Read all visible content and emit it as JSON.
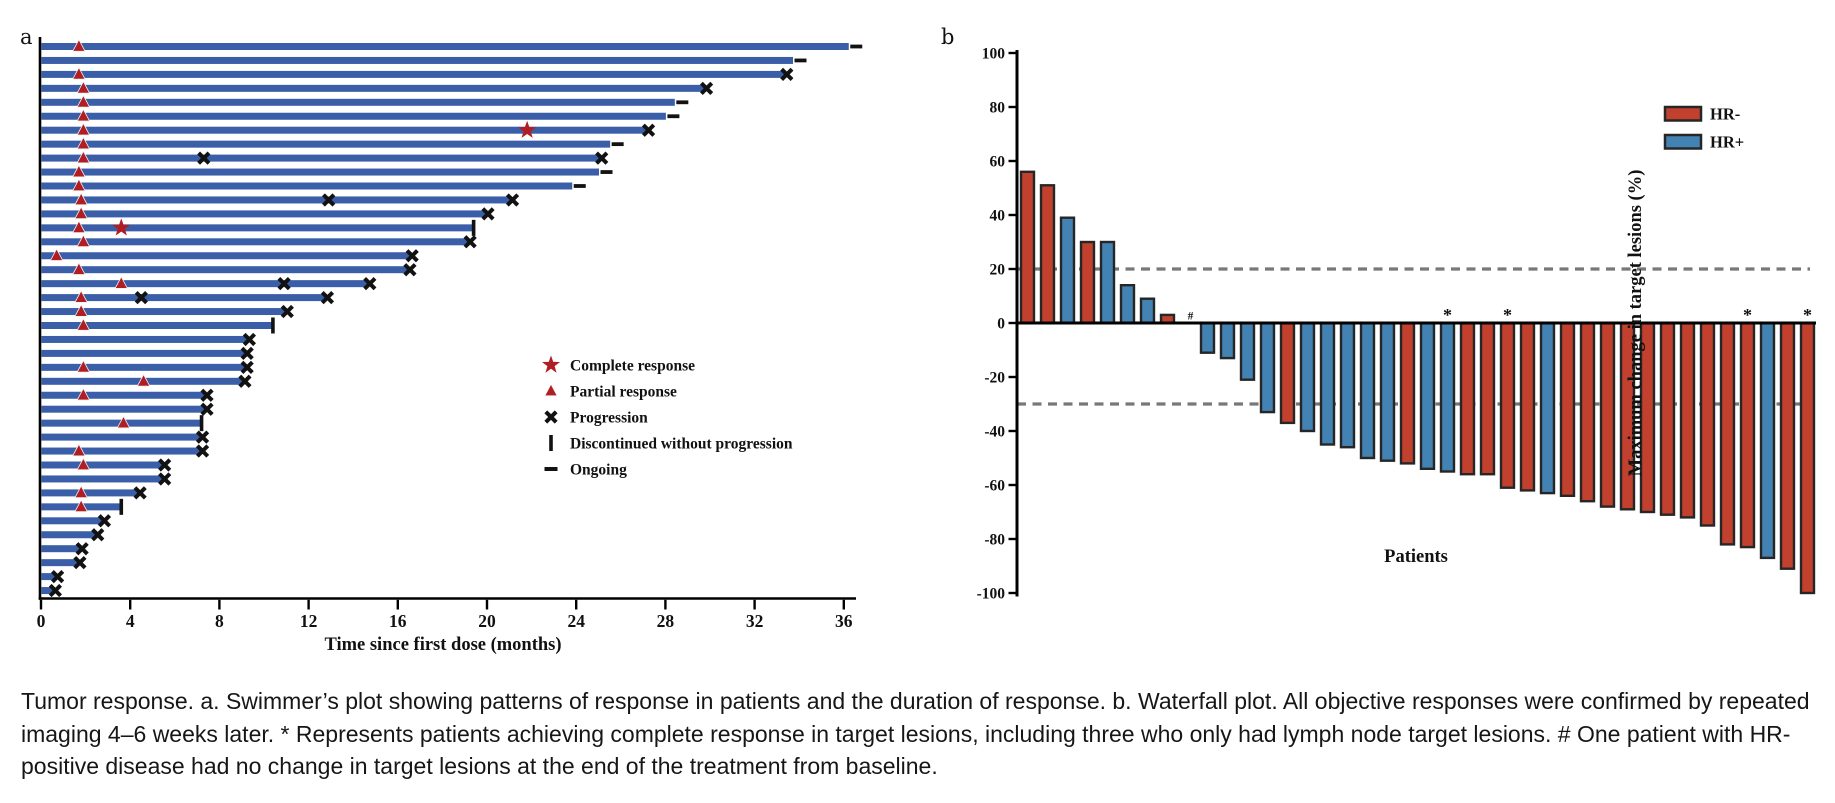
{
  "figure": {
    "panel_a_label": "a",
    "panel_b_label": "b"
  },
  "caption": {
    "text": "Tumor response. a. Swimmer’s plot showing patterns of response in patients and the duration of response. b. Waterfall plot. All objective responses were confirmed by repeated imaging 4–6 weeks later. * Represents patients achieving complete response in target lesions, including three who only had lymph node target lesions. # One patient with HR-positive disease had no change in target lesions at the end of the treatment from baseline."
  },
  "chart_data": [
    {
      "id": "swimmer-plot",
      "type": "bar",
      "orientation": "horizontal",
      "xlabel": "Time since first dose (months)",
      "x_ticks": [
        0,
        4,
        8,
        12,
        16,
        20,
        24,
        28,
        32,
        36
      ],
      "xlim": [
        0,
        36.5
      ],
      "bar_color": "#3a5fa8",
      "marker_red": "#b01e24",
      "marker_black": "#121212",
      "legend": [
        {
          "symbol": "star",
          "label": "Complete response"
        },
        {
          "symbol": "triangle",
          "label": "Partial response"
        },
        {
          "symbol": "x",
          "label": "Progression"
        },
        {
          "symbol": "bar",
          "label": "Discontinued without progression"
        },
        {
          "symbol": "dash",
          "label": "Ongoing"
        }
      ],
      "patients": [
        {
          "len": 36.2,
          "pr": 1.7,
          "end": "ongoing"
        },
        {
          "len": 33.7,
          "end": "ongoing"
        },
        {
          "len": 33.4,
          "pr": 1.7,
          "end": "px"
        },
        {
          "len": 29.8,
          "pr": 1.9,
          "end": "px"
        },
        {
          "len": 28.4,
          "pr": 1.9,
          "end": "ongoing"
        },
        {
          "len": 28.0,
          "pr": 1.9,
          "end": "ongoing"
        },
        {
          "len": 27.2,
          "pr": 1.9,
          "cr": 21.8,
          "end": "px"
        },
        {
          "len": 25.5,
          "pr": 1.9,
          "end": "ongoing"
        },
        {
          "len": 25.1,
          "pr": 1.9,
          "midpx": 7.3,
          "end": "px"
        },
        {
          "len": 25.0,
          "pr": 1.7,
          "end": "ongoing"
        },
        {
          "len": 23.8,
          "pr": 1.7,
          "end": "ongoing"
        },
        {
          "len": 21.1,
          "pr": 1.8,
          "midpx": 12.9,
          "end": "px"
        },
        {
          "len": 20.0,
          "pr": 1.8,
          "end": "px"
        },
        {
          "len": 19.4,
          "pr": 1.7,
          "cr": 3.6,
          "end": "disc"
        },
        {
          "len": 19.2,
          "pr": 1.9,
          "end": "px"
        },
        {
          "len": 16.6,
          "pr": 0.7,
          "end": "px"
        },
        {
          "len": 16.5,
          "pr": 1.7,
          "end": "px"
        },
        {
          "len": 14.7,
          "pr": 3.6,
          "midpx": 10.9,
          "end": "px"
        },
        {
          "len": 12.8,
          "pr": 1.8,
          "midpx": 4.5,
          "end": "px"
        },
        {
          "len": 11.0,
          "pr": 1.8,
          "end": "px"
        },
        {
          "len": 10.4,
          "pr": 1.9,
          "end": "disc"
        },
        {
          "len": 9.3,
          "end": "px"
        },
        {
          "len": 9.2,
          "end": "px"
        },
        {
          "len": 9.2,
          "pr": 1.9,
          "end": "px"
        },
        {
          "len": 9.1,
          "pr": 4.6,
          "end": "px"
        },
        {
          "len": 7.4,
          "pr": 1.9,
          "end": "px"
        },
        {
          "len": 7.4,
          "end": "px"
        },
        {
          "len": 7.2,
          "pr": 3.7,
          "end": "disc"
        },
        {
          "len": 7.2,
          "end": "px"
        },
        {
          "len": 7.2,
          "pr": 1.7,
          "end": "px"
        },
        {
          "len": 5.5,
          "pr": 1.9,
          "end": "px"
        },
        {
          "len": 5.5,
          "end": "px"
        },
        {
          "len": 4.4,
          "pr": 1.8,
          "end": "px"
        },
        {
          "len": 3.6,
          "pr": 1.8,
          "end": "disc"
        },
        {
          "len": 2.8,
          "end": "px"
        },
        {
          "len": 2.5,
          "end": "px"
        },
        {
          "len": 1.8,
          "end": "px"
        },
        {
          "len": 1.7,
          "end": "px"
        },
        {
          "len": 0.7,
          "end": "px"
        },
        {
          "len": 0.6,
          "end": "px"
        }
      ]
    },
    {
      "id": "waterfall-plot",
      "type": "bar",
      "ylabel": "Maximum change in target lesions (%)",
      "xlabel": "Patients",
      "ylim": [
        -100,
        100
      ],
      "y_ticks": [
        100,
        80,
        60,
        40,
        20,
        0,
        -20,
        -40,
        -60,
        -80,
        -100
      ],
      "ref_lines": [
        20,
        -30
      ],
      "ref_line_color": "#787878",
      "outline_color": "#262626",
      "colors": {
        "HR-": "#c2402e",
        "HR+": "#4383b4"
      },
      "legend": [
        {
          "label": "HR-",
          "color": "#c2402e"
        },
        {
          "label": "HR+",
          "color": "#4383b4"
        }
      ],
      "patients": [
        {
          "v": 56,
          "hr": "HR-"
        },
        {
          "v": 51,
          "hr": "HR-"
        },
        {
          "v": 39,
          "hr": "HR+"
        },
        {
          "v": 30,
          "hr": "HR-"
        },
        {
          "v": 30,
          "hr": "HR+"
        },
        {
          "v": 14,
          "hr": "HR+"
        },
        {
          "v": 9,
          "hr": "HR+"
        },
        {
          "v": 3,
          "hr": "HR-"
        },
        {
          "v": 0,
          "hr": "HR+",
          "mark": "#"
        },
        {
          "v": -11,
          "hr": "HR+"
        },
        {
          "v": -13,
          "hr": "HR+"
        },
        {
          "v": -21,
          "hr": "HR+"
        },
        {
          "v": -33,
          "hr": "HR+"
        },
        {
          "v": -37,
          "hr": "HR-"
        },
        {
          "v": -40,
          "hr": "HR+"
        },
        {
          "v": -45,
          "hr": "HR+"
        },
        {
          "v": -46,
          "hr": "HR+"
        },
        {
          "v": -50,
          "hr": "HR+"
        },
        {
          "v": -51,
          "hr": "HR+"
        },
        {
          "v": -52,
          "hr": "HR-"
        },
        {
          "v": -54,
          "hr": "HR+"
        },
        {
          "v": -55,
          "hr": "HR+",
          "mark": "*"
        },
        {
          "v": -56,
          "hr": "HR-"
        },
        {
          "v": -56,
          "hr": "HR-"
        },
        {
          "v": -61,
          "hr": "HR-",
          "mark": "*"
        },
        {
          "v": -62,
          "hr": "HR-"
        },
        {
          "v": -63,
          "hr": "HR+"
        },
        {
          "v": -64,
          "hr": "HR-"
        },
        {
          "v": -66,
          "hr": "HR-"
        },
        {
          "v": -68,
          "hr": "HR-"
        },
        {
          "v": -69,
          "hr": "HR-"
        },
        {
          "v": -70,
          "hr": "HR-"
        },
        {
          "v": -71,
          "hr": "HR-"
        },
        {
          "v": -72,
          "hr": "HR-"
        },
        {
          "v": -75,
          "hr": "HR-"
        },
        {
          "v": -82,
          "hr": "HR-"
        },
        {
          "v": -83,
          "hr": "HR-",
          "mark": "*"
        },
        {
          "v": -87,
          "hr": "HR+"
        },
        {
          "v": -91,
          "hr": "HR-"
        },
        {
          "v": -100,
          "hr": "HR-",
          "mark": "*"
        }
      ]
    }
  ]
}
